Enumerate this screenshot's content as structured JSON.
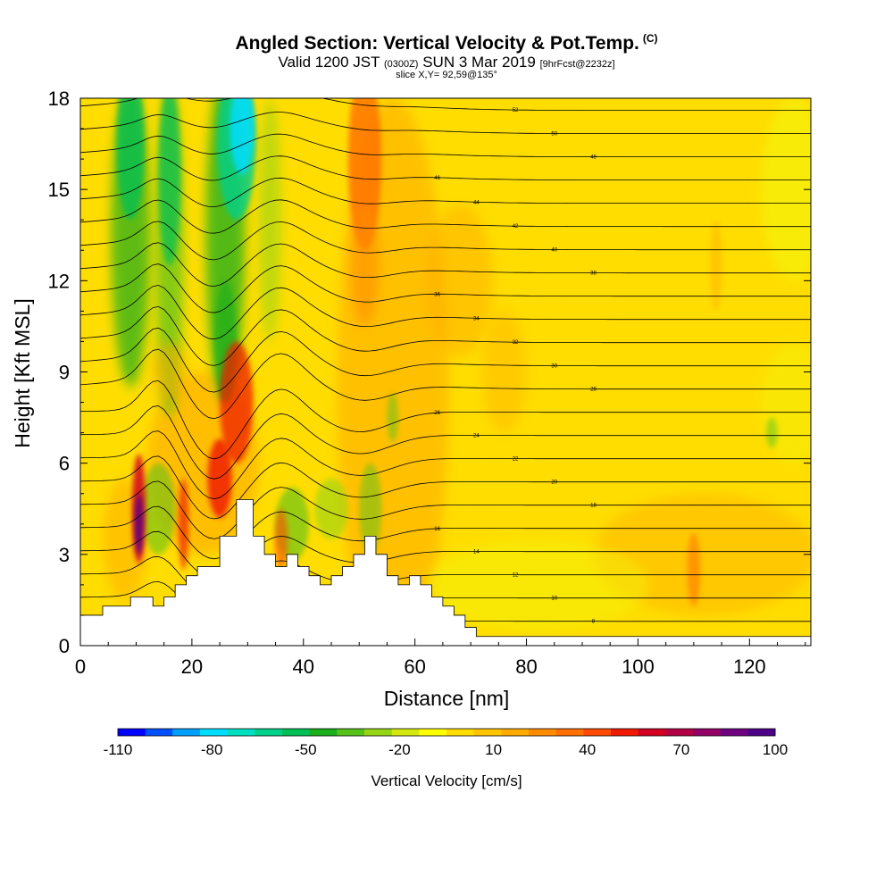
{
  "header": {
    "title": "Angled Section: Vertical Velocity & Pot.Temp.",
    "title_suffix": "(C)",
    "subtitle_prefix": "Valid 1200 JST",
    "subtitle_zulu": "(0300Z)",
    "subtitle_date": "SUN 3 Mar 2019",
    "subtitle_fcst": "[9hrFcst@2232z]",
    "slice_label": "slice X,Y= 92,59@135°"
  },
  "chart_data": {
    "type": "heatmap",
    "title": "Angled Section: Vertical Velocity & Pot.Temp.",
    "xlabel": "Distance [nm]",
    "ylabel": "Height [Kft MSL]",
    "xlim": [
      0,
      131
    ],
    "ylim": [
      0,
      18
    ],
    "xticks": [
      0,
      20,
      40,
      60,
      80,
      100,
      120
    ],
    "yticks": [
      0,
      3,
      6,
      9,
      12,
      15,
      18
    ],
    "terrain": {
      "x": [
        0,
        4,
        4,
        9,
        9,
        13,
        13,
        15,
        15,
        17,
        17,
        19,
        19,
        21,
        21,
        25,
        25,
        28,
        28,
        31,
        31,
        33,
        33,
        35,
        35,
        37,
        37,
        39,
        39,
        41,
        41,
        43,
        43,
        45,
        45,
        47,
        47,
        49,
        49,
        51,
        51,
        53,
        53,
        55,
        55,
        57,
        57,
        59,
        59,
        61,
        61,
        63,
        63,
        65,
        65,
        67,
        67,
        69,
        69,
        71,
        71,
        131
      ],
      "y": [
        1.0,
        1.0,
        1.3,
        1.3,
        1.6,
        1.6,
        1.3,
        1.3,
        1.6,
        1.6,
        2.0,
        2.0,
        2.3,
        2.3,
        2.6,
        2.6,
        3.6,
        3.6,
        4.8,
        4.8,
        3.6,
        3.6,
        3.0,
        3.0,
        2.6,
        2.6,
        3.0,
        3.0,
        2.6,
        2.6,
        2.3,
        2.3,
        2.0,
        2.0,
        2.3,
        2.3,
        2.6,
        2.6,
        3.0,
        3.0,
        3.6,
        3.6,
        3.0,
        3.0,
        2.3,
        2.3,
        2.0,
        2.0,
        2.3,
        2.3,
        2.0,
        2.0,
        1.6,
        1.6,
        1.3,
        1.3,
        1.0,
        1.0,
        0.6,
        0.6,
        0.3,
        0.3
      ]
    },
    "colorbar": {
      "label": "Vertical Velocity [cm/s]",
      "tick_labels": [
        "-110",
        "-80",
        "-50",
        "-20",
        "10",
        "40",
        "70",
        "100"
      ],
      "colors": [
        "#0000ff",
        "#0050ff",
        "#00a0ff",
        "#00ddff",
        "#00e0c0",
        "#00d08a",
        "#00bf55",
        "#1aae1a",
        "#55c21a",
        "#95d515",
        "#d4e80f",
        "#ffff00",
        "#ffdd00",
        "#ffc400",
        "#ffaa00",
        "#ff8c00",
        "#ff6e00",
        "#ff4a00",
        "#f01a00",
        "#d40022",
        "#b30044",
        "#930066",
        "#6f0080",
        "#4d0088"
      ]
    },
    "contours_theta_C": [
      8,
      10,
      12,
      14,
      16,
      18,
      20,
      22,
      24,
      26,
      28,
      30,
      32,
      34,
      36,
      38,
      40,
      42,
      44,
      46,
      48,
      50,
      52
    ]
  }
}
